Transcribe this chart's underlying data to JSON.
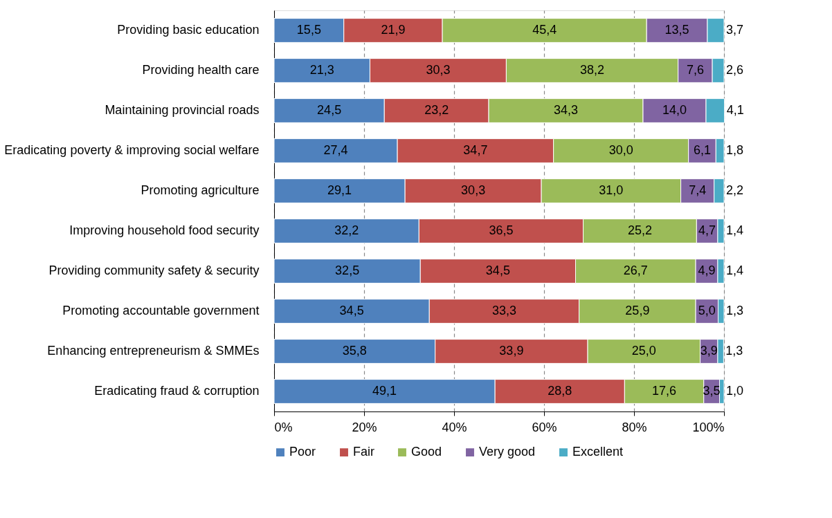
{
  "chart_data": {
    "type": "bar",
    "orientation": "horizontal",
    "stacked": true,
    "categories": [
      "Providing basic education",
      "Providing health care",
      "Maintaining provincial roads",
      "Eradicating poverty & improving social welfare",
      "Promoting agriculture",
      "Improving household food security",
      "Providing community safety & security",
      "Promoting accountable government",
      "Enhancing entrepreneurism & SMMEs",
      "Eradicating fraud & corruption"
    ],
    "series": [
      {
        "name": "Poor",
        "color": "#4f81bd",
        "values": [
          15.5,
          21.3,
          24.5,
          27.4,
          29.1,
          32.2,
          32.5,
          34.5,
          35.8,
          49.1
        ],
        "value_labels": [
          "15,5",
          "21,3",
          "24,5",
          "27,4",
          "29,1",
          "32,2",
          "32,5",
          "34,5",
          "35,8",
          "49,1"
        ]
      },
      {
        "name": "Fair",
        "color": "#c0504d",
        "values": [
          21.9,
          30.3,
          23.2,
          34.7,
          30.3,
          36.5,
          34.5,
          33.3,
          33.9,
          28.8
        ],
        "value_labels": [
          "21,9",
          "30,3",
          "23,2",
          "34,7",
          "30,3",
          "36,5",
          "34,5",
          "33,3",
          "33,9",
          "28,8"
        ]
      },
      {
        "name": "Good",
        "color": "#9bbb59",
        "values": [
          45.4,
          38.2,
          34.3,
          30.0,
          31.0,
          25.2,
          26.7,
          25.9,
          25.0,
          17.6
        ],
        "value_labels": [
          "45,4",
          "38,2",
          "34,3",
          "30,0",
          "31,0",
          "25,2",
          "26,7",
          "25,9",
          "25,0",
          "17,6"
        ]
      },
      {
        "name": "Very good",
        "color": "#8064a2",
        "values": [
          13.5,
          7.6,
          14.0,
          6.1,
          7.4,
          4.7,
          4.9,
          5.0,
          3.9,
          3.5
        ],
        "value_labels": [
          "13,5",
          "7,6",
          "14,0",
          "6,1",
          "7,4",
          "4,7",
          "4,9",
          "5,0",
          "3,9",
          "3,5"
        ]
      },
      {
        "name": "Excellent",
        "color": "#4bacc6",
        "values": [
          3.7,
          2.6,
          4.1,
          1.8,
          2.2,
          1.4,
          1.4,
          1.3,
          1.3,
          1.0
        ],
        "value_labels": [
          "3,7",
          "2,6",
          "4,1",
          "1,8",
          "2,2",
          "1,4",
          "1,4",
          "1,3",
          "1,3",
          "1,0"
        ]
      }
    ],
    "xlim": [
      0,
      100
    ],
    "xticks": [
      {
        "value": 0,
        "label": "0%"
      },
      {
        "value": 20,
        "label": "20%"
      },
      {
        "value": 40,
        "label": "40%"
      },
      {
        "value": 60,
        "label": "60%"
      },
      {
        "value": 80,
        "label": "80%"
      },
      {
        "value": 100,
        "label": "100%"
      }
    ],
    "grid": "x",
    "legend": "bottom"
  }
}
